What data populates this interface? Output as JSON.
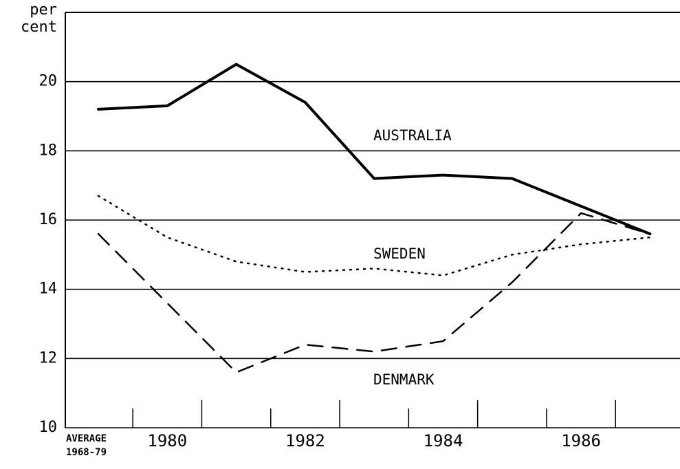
{
  "chart_data": {
    "type": "line",
    "y_label": "per cent",
    "categories": [
      "AVERAGE 1968-79",
      "1980",
      null,
      "1982",
      null,
      "1984",
      null,
      "1986",
      null
    ],
    "series": [
      {
        "name": "AUSTRALIA",
        "color": "#000000",
        "dash": "solid",
        "values": [
          19.2,
          19.3,
          20.5,
          19.4,
          17.2,
          17.3,
          17.2,
          16.4,
          15.6
        ]
      },
      {
        "name": "SWEDEN",
        "color": "#000000",
        "dash": "dotted",
        "values": [
          16.7,
          15.5,
          14.8,
          14.5,
          14.6,
          14.4,
          15.0,
          15.3,
          15.5
        ]
      },
      {
        "name": "DENMARK",
        "color": "#000000",
        "dash": "dashed",
        "values": [
          15.6,
          13.6,
          11.6,
          12.4,
          12.2,
          12.5,
          14.2,
          16.2,
          15.6
        ]
      }
    ],
    "ylim": [
      10,
      22
    ],
    "yticks": [
      10,
      12,
      14,
      16,
      18,
      20
    ],
    "grid": true
  }
}
